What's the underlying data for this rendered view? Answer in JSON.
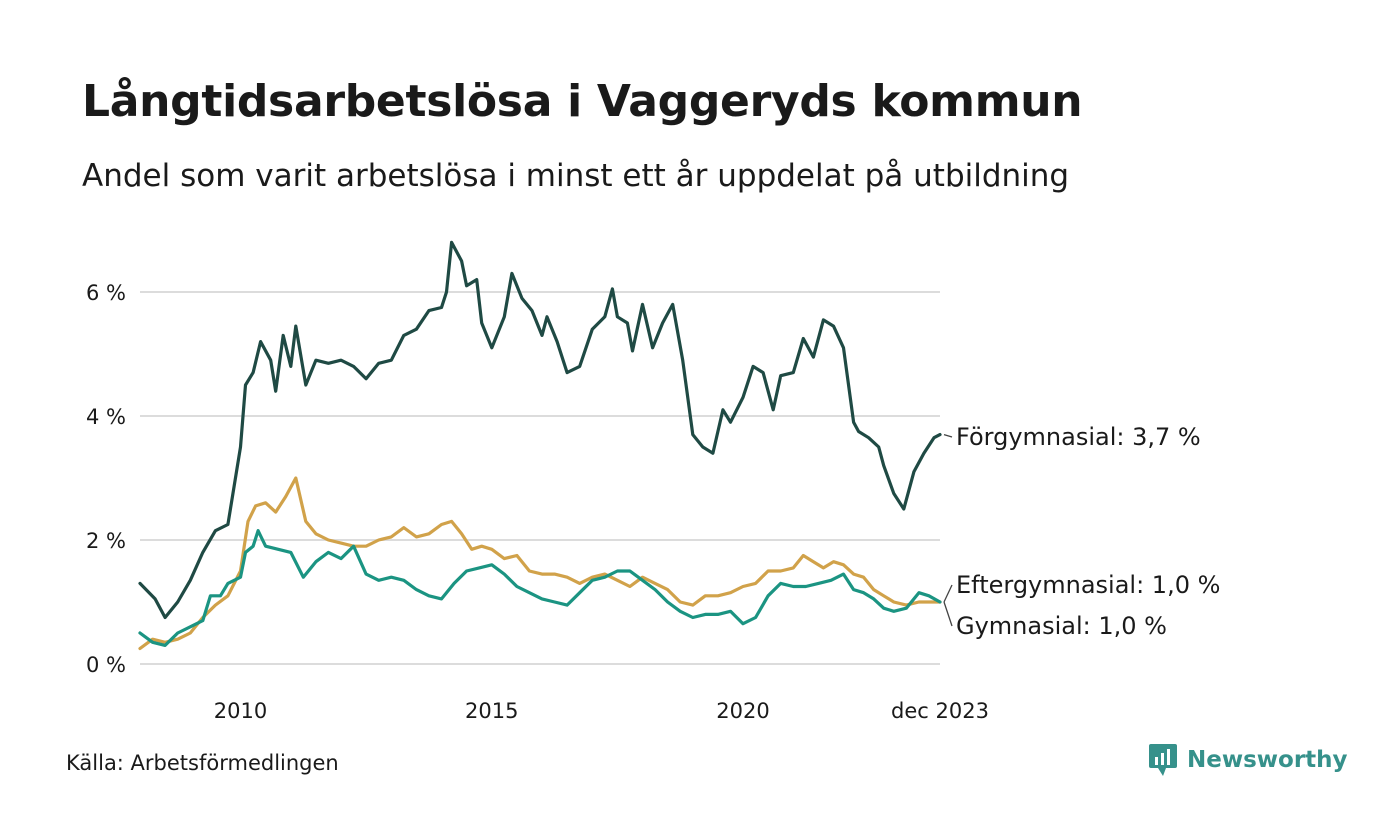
{
  "title": "Långtidsarbetslösa i Vaggeryds kommun",
  "subtitle": "Andel som varit arbetslösa i minst ett år uppdelat på utbildning",
  "source": "Källa: Arbetsförmedlingen",
  "brand": {
    "name": "Newsworthy",
    "icon": "newsworthy-logo-icon",
    "color": "#36918b"
  },
  "chart_data": {
    "type": "line",
    "title": "Långtidsarbetslösa i Vaggeryds kommun",
    "subtitle": "Andel som varit arbetslösa i minst ett år uppdelat på utbildning",
    "xlabel": "",
    "ylabel": "",
    "xlim": [
      2008.0,
      2023.92
    ],
    "ylim": [
      0,
      7
    ],
    "y_ticks": [
      0,
      2,
      4,
      6
    ],
    "y_tick_labels": [
      "0 %",
      "2 %",
      "4 %",
      "6 %"
    ],
    "x_ticks": [
      2010,
      2015,
      2020,
      2023.92
    ],
    "x_tick_labels": [
      "2010",
      "2015",
      "2020",
      "dec 2023"
    ],
    "grid": true,
    "series": [
      {
        "name": "Förgymnasial",
        "end_label": "Förgymnasial: 3,7 %",
        "color": "#1f4a44",
        "points": [
          [
            2008.0,
            1.3
          ],
          [
            2008.3,
            1.05
          ],
          [
            2008.5,
            0.75
          ],
          [
            2008.75,
            1.0
          ],
          [
            2009.0,
            1.35
          ],
          [
            2009.25,
            1.8
          ],
          [
            2009.5,
            2.15
          ],
          [
            2009.75,
            2.25
          ],
          [
            2010.0,
            3.5
          ],
          [
            2010.1,
            4.5
          ],
          [
            2010.25,
            4.7
          ],
          [
            2010.4,
            5.2
          ],
          [
            2010.6,
            4.9
          ],
          [
            2010.7,
            4.4
          ],
          [
            2010.85,
            5.3
          ],
          [
            2011.0,
            4.8
          ],
          [
            2011.1,
            5.45
          ],
          [
            2011.3,
            4.5
          ],
          [
            2011.5,
            4.9
          ],
          [
            2011.75,
            4.85
          ],
          [
            2012.0,
            4.9
          ],
          [
            2012.25,
            4.8
          ],
          [
            2012.5,
            4.6
          ],
          [
            2012.75,
            4.85
          ],
          [
            2013.0,
            4.9
          ],
          [
            2013.25,
            5.3
          ],
          [
            2013.5,
            5.4
          ],
          [
            2013.75,
            5.7
          ],
          [
            2014.0,
            5.75
          ],
          [
            2014.1,
            6.0
          ],
          [
            2014.2,
            6.8
          ],
          [
            2014.4,
            6.5
          ],
          [
            2014.5,
            6.1
          ],
          [
            2014.7,
            6.2
          ],
          [
            2014.8,
            5.5
          ],
          [
            2015.0,
            5.1
          ],
          [
            2015.25,
            5.6
          ],
          [
            2015.4,
            6.3
          ],
          [
            2015.6,
            5.9
          ],
          [
            2015.8,
            5.7
          ],
          [
            2016.0,
            5.3
          ],
          [
            2016.1,
            5.6
          ],
          [
            2016.3,
            5.2
          ],
          [
            2016.5,
            4.7
          ],
          [
            2016.75,
            4.8
          ],
          [
            2017.0,
            5.4
          ],
          [
            2017.25,
            5.6
          ],
          [
            2017.4,
            6.05
          ],
          [
            2017.5,
            5.6
          ],
          [
            2017.7,
            5.5
          ],
          [
            2017.8,
            5.05
          ],
          [
            2018.0,
            5.8
          ],
          [
            2018.2,
            5.1
          ],
          [
            2018.4,
            5.5
          ],
          [
            2018.6,
            5.8
          ],
          [
            2018.8,
            4.9
          ],
          [
            2019.0,
            3.7
          ],
          [
            2019.2,
            3.5
          ],
          [
            2019.4,
            3.4
          ],
          [
            2019.6,
            4.1
          ],
          [
            2019.75,
            3.9
          ],
          [
            2020.0,
            4.3
          ],
          [
            2020.2,
            4.8
          ],
          [
            2020.4,
            4.7
          ],
          [
            2020.6,
            4.1
          ],
          [
            2020.75,
            4.65
          ],
          [
            2021.0,
            4.7
          ],
          [
            2021.2,
            5.25
          ],
          [
            2021.4,
            4.95
          ],
          [
            2021.6,
            5.55
          ],
          [
            2021.8,
            5.45
          ],
          [
            2022.0,
            5.1
          ],
          [
            2022.2,
            3.9
          ],
          [
            2022.3,
            3.75
          ],
          [
            2022.5,
            3.65
          ],
          [
            2022.7,
            3.5
          ],
          [
            2022.8,
            3.2
          ],
          [
            2023.0,
            2.75
          ],
          [
            2023.2,
            2.5
          ],
          [
            2023.4,
            3.1
          ],
          [
            2023.6,
            3.4
          ],
          [
            2023.8,
            3.65
          ],
          [
            2023.92,
            3.7
          ]
        ]
      },
      {
        "name": "Eftergymnasial",
        "end_label": "Eftergymnasial: 1,0 %",
        "color": "#d1a24a",
        "points": [
          [
            2008.0,
            0.25
          ],
          [
            2008.25,
            0.4
          ],
          [
            2008.5,
            0.35
          ],
          [
            2008.75,
            0.4
          ],
          [
            2009.0,
            0.5
          ],
          [
            2009.25,
            0.75
          ],
          [
            2009.5,
            0.95
          ],
          [
            2009.75,
            1.1
          ],
          [
            2010.0,
            1.5
          ],
          [
            2010.15,
            2.3
          ],
          [
            2010.3,
            2.55
          ],
          [
            2010.5,
            2.6
          ],
          [
            2010.7,
            2.45
          ],
          [
            2010.9,
            2.7
          ],
          [
            2011.1,
            3.0
          ],
          [
            2011.3,
            2.3
          ],
          [
            2011.5,
            2.1
          ],
          [
            2011.75,
            2.0
          ],
          [
            2012.0,
            1.95
          ],
          [
            2012.25,
            1.9
          ],
          [
            2012.5,
            1.9
          ],
          [
            2012.75,
            2.0
          ],
          [
            2013.0,
            2.05
          ],
          [
            2013.25,
            2.2
          ],
          [
            2013.5,
            2.05
          ],
          [
            2013.75,
            2.1
          ],
          [
            2014.0,
            2.25
          ],
          [
            2014.2,
            2.3
          ],
          [
            2014.4,
            2.1
          ],
          [
            2014.6,
            1.85
          ],
          [
            2014.8,
            1.9
          ],
          [
            2015.0,
            1.85
          ],
          [
            2015.25,
            1.7
          ],
          [
            2015.5,
            1.75
          ],
          [
            2015.75,
            1.5
          ],
          [
            2016.0,
            1.45
          ],
          [
            2016.25,
            1.45
          ],
          [
            2016.5,
            1.4
          ],
          [
            2016.75,
            1.3
          ],
          [
            2017.0,
            1.4
          ],
          [
            2017.25,
            1.45
          ],
          [
            2017.5,
            1.35
          ],
          [
            2017.75,
            1.25
          ],
          [
            2018.0,
            1.4
          ],
          [
            2018.25,
            1.3
          ],
          [
            2018.5,
            1.2
          ],
          [
            2018.75,
            1.0
          ],
          [
            2019.0,
            0.95
          ],
          [
            2019.25,
            1.1
          ],
          [
            2019.5,
            1.1
          ],
          [
            2019.75,
            1.15
          ],
          [
            2020.0,
            1.25
          ],
          [
            2020.25,
            1.3
          ],
          [
            2020.5,
            1.5
          ],
          [
            2020.75,
            1.5
          ],
          [
            2021.0,
            1.55
          ],
          [
            2021.2,
            1.75
          ],
          [
            2021.4,
            1.65
          ],
          [
            2021.6,
            1.55
          ],
          [
            2021.8,
            1.65
          ],
          [
            2022.0,
            1.6
          ],
          [
            2022.2,
            1.45
          ],
          [
            2022.4,
            1.4
          ],
          [
            2022.6,
            1.2
          ],
          [
            2022.8,
            1.1
          ],
          [
            2023.0,
            1.0
          ],
          [
            2023.25,
            0.95
          ],
          [
            2023.5,
            1.0
          ],
          [
            2023.75,
            1.0
          ],
          [
            2023.92,
            1.0
          ]
        ]
      },
      {
        "name": "Gymnasial",
        "end_label": "Gymnasial: 1,0 %",
        "color": "#1b9482",
        "points": [
          [
            2008.0,
            0.5
          ],
          [
            2008.25,
            0.35
          ],
          [
            2008.5,
            0.3
          ],
          [
            2008.75,
            0.5
          ],
          [
            2009.0,
            0.6
          ],
          [
            2009.25,
            0.7
          ],
          [
            2009.4,
            1.1
          ],
          [
            2009.6,
            1.1
          ],
          [
            2009.75,
            1.3
          ],
          [
            2010.0,
            1.4
          ],
          [
            2010.1,
            1.8
          ],
          [
            2010.25,
            1.9
          ],
          [
            2010.35,
            2.15
          ],
          [
            2010.5,
            1.9
          ],
          [
            2010.75,
            1.85
          ],
          [
            2011.0,
            1.8
          ],
          [
            2011.25,
            1.4
          ],
          [
            2011.5,
            1.65
          ],
          [
            2011.75,
            1.8
          ],
          [
            2012.0,
            1.7
          ],
          [
            2012.25,
            1.9
          ],
          [
            2012.5,
            1.45
          ],
          [
            2012.75,
            1.35
          ],
          [
            2013.0,
            1.4
          ],
          [
            2013.25,
            1.35
          ],
          [
            2013.5,
            1.2
          ],
          [
            2013.75,
            1.1
          ],
          [
            2014.0,
            1.05
          ],
          [
            2014.25,
            1.3
          ],
          [
            2014.5,
            1.5
          ],
          [
            2014.75,
            1.55
          ],
          [
            2015.0,
            1.6
          ],
          [
            2015.25,
            1.45
          ],
          [
            2015.5,
            1.25
          ],
          [
            2015.75,
            1.15
          ],
          [
            2016.0,
            1.05
          ],
          [
            2016.25,
            1.0
          ],
          [
            2016.5,
            0.95
          ],
          [
            2016.75,
            1.15
          ],
          [
            2017.0,
            1.35
          ],
          [
            2017.25,
            1.4
          ],
          [
            2017.5,
            1.5
          ],
          [
            2017.75,
            1.5
          ],
          [
            2018.0,
            1.35
          ],
          [
            2018.25,
            1.2
          ],
          [
            2018.5,
            1.0
          ],
          [
            2018.75,
            0.85
          ],
          [
            2019.0,
            0.75
          ],
          [
            2019.25,
            0.8
          ],
          [
            2019.5,
            0.8
          ],
          [
            2019.75,
            0.85
          ],
          [
            2020.0,
            0.65
          ],
          [
            2020.25,
            0.75
          ],
          [
            2020.5,
            1.1
          ],
          [
            2020.75,
            1.3
          ],
          [
            2021.0,
            1.25
          ],
          [
            2021.25,
            1.25
          ],
          [
            2021.5,
            1.3
          ],
          [
            2021.75,
            1.35
          ],
          [
            2022.0,
            1.45
          ],
          [
            2022.2,
            1.2
          ],
          [
            2022.4,
            1.15
          ],
          [
            2022.6,
            1.05
          ],
          [
            2022.8,
            0.9
          ],
          [
            2023.0,
            0.85
          ],
          [
            2023.25,
            0.9
          ],
          [
            2023.5,
            1.15
          ],
          [
            2023.7,
            1.1
          ],
          [
            2023.92,
            1.0
          ]
        ]
      }
    ]
  }
}
